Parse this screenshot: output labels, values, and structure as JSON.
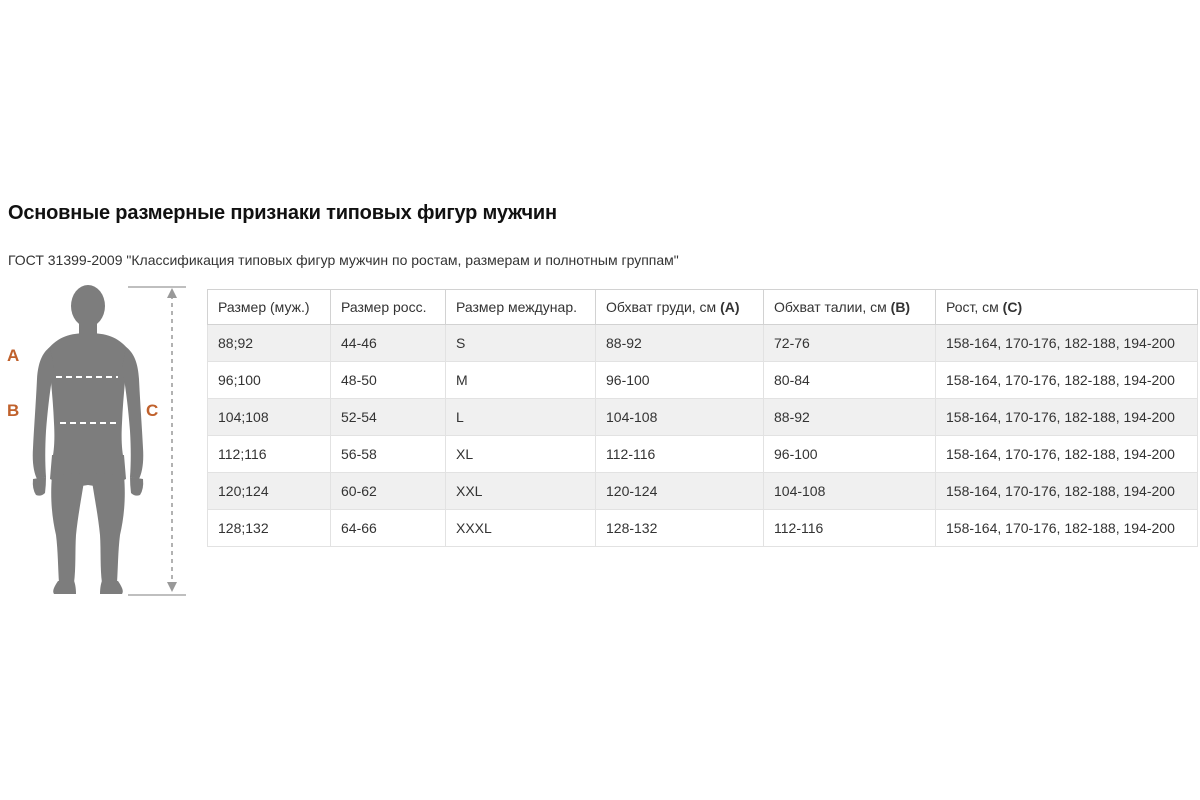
{
  "page": {
    "title": "Основные размерные признаки типовых фигур мужчин",
    "subtitle": "ГОСТ 31399-2009 \"Классификация типовых фигур мужчин по ростам, размерам и полнотным группам\""
  },
  "figure": {
    "label_chest": "A",
    "label_waist": "B",
    "label_height": "C"
  },
  "table": {
    "columns": [
      {
        "label": "Размер (муж.)",
        "bold_suffix": ""
      },
      {
        "label": "Размер росс.",
        "bold_suffix": ""
      },
      {
        "label": "Размер междунар.",
        "bold_suffix": ""
      },
      {
        "label": "Обхват груди, см",
        "bold_suffix": "(A)"
      },
      {
        "label": "Обхват талии, см",
        "bold_suffix": "(B)"
      },
      {
        "label": "Рост, см",
        "bold_suffix": "(C)"
      }
    ],
    "rows": [
      [
        "88;92",
        "44-46",
        "S",
        "88-92",
        "72-76",
        "158-164, 170-176, 182-188, 194-200"
      ],
      [
        "96;100",
        "48-50",
        "M",
        "96-100",
        "80-84",
        "158-164, 170-176, 182-188, 194-200"
      ],
      [
        "104;108",
        "52-54",
        "L",
        "104-108",
        "88-92",
        "158-164, 170-176, 182-188, 194-200"
      ],
      [
        "112;116",
        "56-58",
        "XL",
        "112-116",
        "96-100",
        "158-164, 170-176, 182-188, 194-200"
      ],
      [
        "120;124",
        "60-62",
        "XXL",
        "120-124",
        "104-108",
        "158-164, 170-176, 182-188, 194-200"
      ],
      [
        "128;132",
        "64-66",
        "XXXL",
        "128-132",
        "112-116",
        "158-164, 170-176, 182-188, 194-200"
      ]
    ]
  },
  "colors": {
    "accent_orange": "#c0612c",
    "silhouette_gray": "#7d7d7d",
    "row_alt_bg": "#f0f0f0",
    "border_light": "#e2e2e2",
    "text": "#333333"
  }
}
